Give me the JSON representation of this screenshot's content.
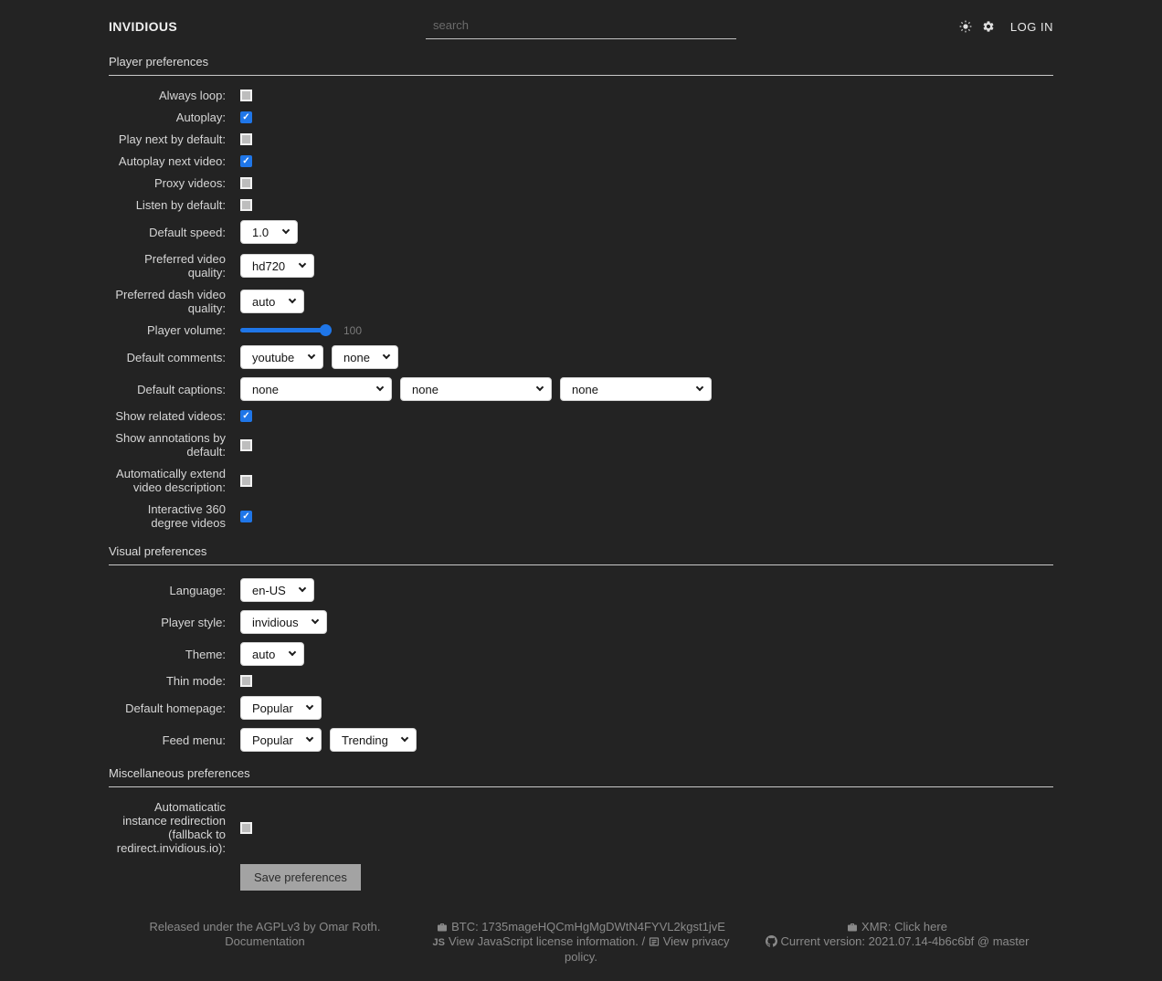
{
  "colors": {
    "accent": "#1f76e8",
    "background": "#232323",
    "select_bg": "#ffffff"
  },
  "header": {
    "logo": "INVIDIOUS",
    "search_placeholder": "search",
    "login_label": "LOG IN",
    "icons": [
      "sun-icon",
      "gear-icon"
    ]
  },
  "sections": [
    {
      "title": "Player preferences",
      "rows": [
        {
          "key": "always-loop",
          "label": "Always loop:",
          "type": "checkbox",
          "checked": false
        },
        {
          "key": "autoplay",
          "label": "Autoplay:",
          "type": "checkbox",
          "checked": true
        },
        {
          "key": "play-next",
          "label": "Play next by default:",
          "type": "checkbox",
          "checked": false
        },
        {
          "key": "autoplay-next",
          "label": "Autoplay next video:",
          "type": "checkbox",
          "checked": true
        },
        {
          "key": "proxy-videos",
          "label": "Proxy videos:",
          "type": "checkbox",
          "checked": false
        },
        {
          "key": "listen-by-default",
          "label": "Listen by default:",
          "type": "checkbox",
          "checked": false
        },
        {
          "key": "default-speed",
          "label": "Default speed:",
          "type": "select",
          "values": [
            "1.0"
          ]
        },
        {
          "key": "preferred-quality",
          "label": "Preferred video quality:",
          "type": "select",
          "values": [
            "hd720"
          ]
        },
        {
          "key": "preferred-dash-quality",
          "label": "Preferred dash video quality:",
          "type": "select",
          "values": [
            "auto"
          ]
        },
        {
          "key": "player-volume",
          "label": "Player volume:",
          "type": "slider",
          "value": 100,
          "max": 100,
          "display": "100"
        },
        {
          "key": "default-comments",
          "label": "Default comments:",
          "type": "select",
          "values": [
            "youtube",
            "none"
          ]
        },
        {
          "key": "default-captions",
          "label": "Default captions:",
          "type": "select",
          "wide": true,
          "values": [
            "none",
            "none",
            "none"
          ]
        },
        {
          "key": "related-videos",
          "label": "Show related videos:",
          "type": "checkbox",
          "checked": true
        },
        {
          "key": "annotations",
          "label": "Show annotations by default:",
          "type": "checkbox",
          "checked": false
        },
        {
          "key": "extend-description",
          "label": "Automatically extend video description:",
          "type": "checkbox",
          "checked": false
        },
        {
          "key": "vr-mode",
          "label": "Interactive 360 degree videos",
          "type": "checkbox",
          "checked": true
        }
      ]
    },
    {
      "title": "Visual preferences",
      "rows": [
        {
          "key": "language",
          "label": "Language:",
          "type": "select",
          "values": [
            "en-US"
          ]
        },
        {
          "key": "player-style",
          "label": "Player style:",
          "type": "select",
          "values": [
            "invidious"
          ]
        },
        {
          "key": "theme",
          "label": "Theme:",
          "type": "select",
          "values": [
            "auto"
          ]
        },
        {
          "key": "thin-mode",
          "label": "Thin mode:",
          "type": "checkbox",
          "checked": false
        },
        {
          "key": "default-homepage",
          "label": "Default homepage:",
          "type": "select",
          "values": [
            "Popular"
          ]
        },
        {
          "key": "feed-menu",
          "label": "Feed menu:",
          "type": "select",
          "values": [
            "Popular",
            "Trending"
          ]
        }
      ]
    },
    {
      "title": "Miscellaneous preferences",
      "rows": [
        {
          "key": "automatic-instance-redirect",
          "label": "Automaticatic instance redirection (fallback to redirect.invidious.io):",
          "type": "checkbox",
          "checked": false
        },
        {
          "key": "save",
          "label": "",
          "type": "button",
          "text": "Save preferences"
        }
      ]
    }
  ],
  "footer": {
    "left": {
      "released": "Released under the AGPLv3 by Omar Roth.",
      "documentation": "Documentation"
    },
    "center": {
      "btc": "BTC: 1735mageHQCmHgMgDWtN4FYVL2kgst1jvE",
      "js_badge": "JS",
      "js_link": "View JavaScript license information.",
      "separator": " / ",
      "privacy_link": "View privacy policy."
    },
    "right": {
      "xmr_prefix": "XMR: ",
      "xmr_link": "Click here",
      "version_prefix": "Current version: ",
      "version_value": "2021.07.14-4b6c6bf @ master"
    }
  }
}
